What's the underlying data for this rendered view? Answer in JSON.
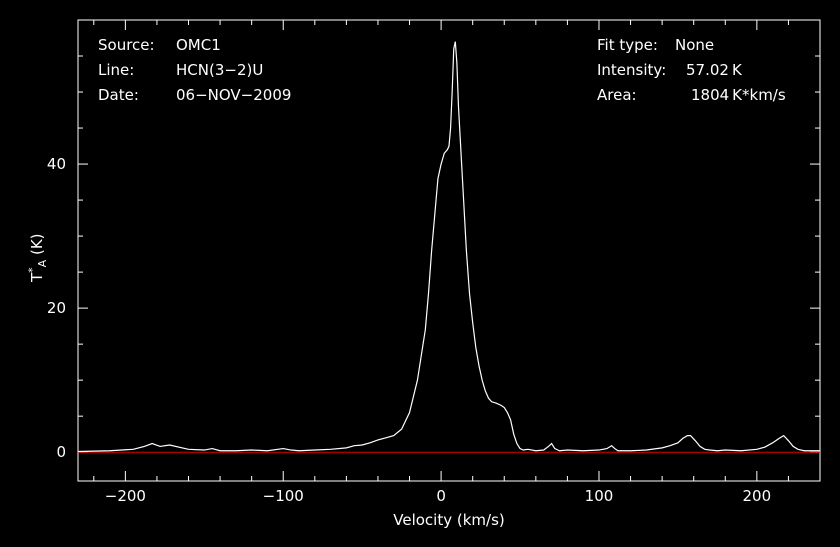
{
  "header": {
    "left": [
      {
        "label": "Source:",
        "value": "OMC1"
      },
      {
        "label": "Line:",
        "value": "HCN(3−2)U"
      },
      {
        "label": "Date:",
        "value": "06−NOV−2009"
      }
    ],
    "right": [
      {
        "label": "Fit type:",
        "value": "None"
      },
      {
        "label": "Intensity:",
        "value": "57.02 K"
      },
      {
        "label": "Area:",
        "value": "1804 K*km/s"
      }
    ]
  },
  "colors": {
    "background": "#000000",
    "spectrum": "#ffffff",
    "baseline": "#e00000",
    "axes": "#ffffff"
  },
  "chart_data": {
    "type": "line",
    "title": "",
    "xlabel": "Velocity (km/s)",
    "ylabel": "T*A (K)",
    "xlim": [
      -230,
      240
    ],
    "ylim": [
      -4,
      60
    ],
    "xticks": [
      -200,
      -100,
      0,
      100,
      200
    ],
    "xtick_labels": [
      "−200",
      "−100",
      "0",
      "100",
      "200"
    ],
    "yticks": [
      0,
      20,
      40
    ],
    "ytick_labels": [
      "0",
      "20",
      "40"
    ],
    "grid": false,
    "baseline": 0,
    "series": [
      {
        "x": [
          -230,
          -210,
          -195,
          -188,
          -183,
          -178,
          -172,
          -160,
          -150,
          -145,
          -140,
          -130,
          -120,
          -110,
          -100,
          -95,
          -90,
          -80,
          -70,
          -60,
          -55,
          -50,
          -45,
          -40,
          -35,
          -30,
          -25,
          -20,
          -15,
          -10,
          -8,
          -6,
          -4,
          -2,
          0,
          2,
          4,
          5,
          6,
          7,
          8,
          9,
          10,
          11,
          12,
          13,
          14,
          15,
          16,
          18,
          20,
          22,
          24,
          26,
          28,
          30,
          32,
          35,
          38,
          40,
          42,
          44,
          46,
          48,
          50,
          52,
          55,
          60,
          65,
          68,
          70,
          72,
          75,
          80,
          90,
          100,
          105,
          108,
          110,
          112,
          120,
          130,
          140,
          145,
          150,
          153,
          156,
          158,
          161,
          164,
          167,
          170,
          175,
          180,
          190,
          200,
          205,
          210,
          214,
          217,
          220,
          223,
          226,
          230,
          235,
          240
        ],
        "y": [
          0.1,
          0.2,
          0.4,
          0.8,
          1.2,
          0.8,
          1.0,
          0.4,
          0.3,
          0.5,
          0.2,
          0.2,
          0.3,
          0.2,
          0.5,
          0.3,
          0.2,
          0.3,
          0.4,
          0.6,
          0.9,
          1.0,
          1.3,
          1.7,
          2.0,
          2.3,
          3.2,
          5.5,
          10,
          17,
          22,
          28,
          33,
          38,
          40,
          41.5,
          42,
          42.5,
          45,
          50,
          56,
          57,
          54,
          48,
          44,
          40,
          36,
          32,
          28,
          22,
          18,
          14.5,
          12,
          10,
          8.5,
          7.5,
          7.0,
          6.8,
          6.5,
          6.2,
          5.5,
          4.5,
          2.5,
          1.2,
          0.5,
          0.3,
          0.4,
          0.2,
          0.3,
          0.8,
          1.2,
          0.5,
          0.2,
          0.3,
          0.2,
          0.3,
          0.5,
          0.9,
          0.5,
          0.2,
          0.2,
          0.3,
          0.6,
          0.9,
          1.3,
          1.9,
          2.3,
          2.3,
          1.6,
          0.8,
          0.4,
          0.3,
          0.2,
          0.3,
          0.2,
          0.4,
          0.7,
          1.3,
          1.9,
          2.3,
          1.6,
          0.8,
          0.4,
          0.2,
          0.2,
          0.2
        ]
      }
    ]
  }
}
